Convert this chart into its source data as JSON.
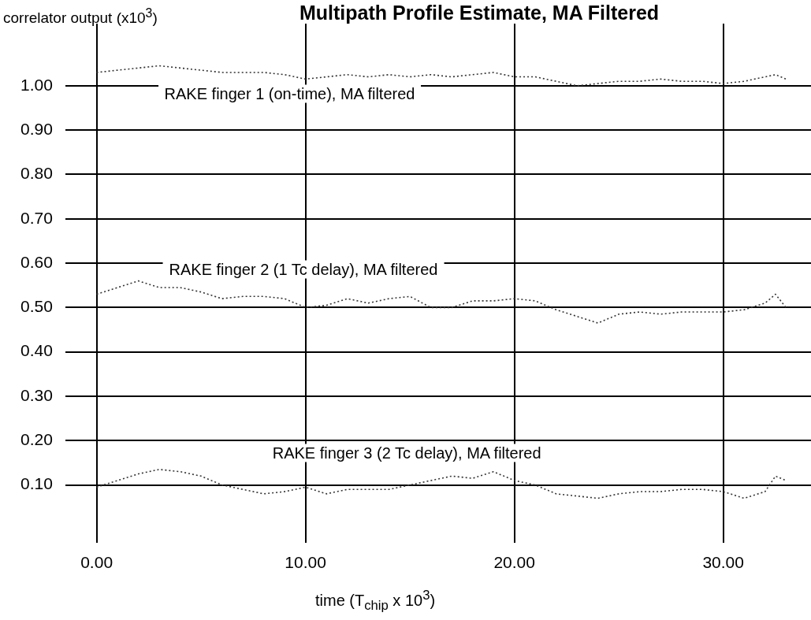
{
  "chart_data": {
    "type": "line",
    "title": "Multipath Profile Estimate, MA Filtered",
    "ylabel": "correlator output (x10$^{3}$)",
    "xlabel": "time (T$_{chip}$ x 10$^{3}$)",
    "xlim": [
      -1.5,
      34.2
    ],
    "ylim": [
      -0.03,
      1.14
    ],
    "xticks": [
      {
        "value": 0,
        "label": "0.00"
      },
      {
        "value": 10,
        "label": "10.00"
      },
      {
        "value": 20,
        "label": "20.00"
      },
      {
        "value": 30,
        "label": "30.00"
      }
    ],
    "yticks": [
      {
        "value": 0.1,
        "label": "0.10"
      },
      {
        "value": 0.2,
        "label": "0.20"
      },
      {
        "value": 0.3,
        "label": "0.30"
      },
      {
        "value": 0.4,
        "label": "0.40"
      },
      {
        "value": 0.5,
        "label": "0.50"
      },
      {
        "value": 0.6,
        "label": "0.60"
      },
      {
        "value": 0.7,
        "label": "0.70"
      },
      {
        "value": 0.8,
        "label": "0.80"
      },
      {
        "value": 0.9,
        "label": "0.90"
      },
      {
        "value": 1.0,
        "label": "1.00"
      }
    ],
    "grid": true,
    "legend": false,
    "marker": "none",
    "line_style": "dotted",
    "series": [
      {
        "name": "RAKE finger 1 (on-time), MA filtered",
        "color": "#333333",
        "x": [
          0,
          1,
          2,
          3,
          4,
          5,
          6,
          7,
          8,
          9,
          10,
          11,
          12,
          13,
          14,
          15,
          16,
          17,
          18,
          19,
          20,
          21,
          22,
          23,
          24,
          25,
          26,
          27,
          28,
          29,
          30,
          31,
          32,
          32.5,
          33
        ],
        "values": [
          1.03,
          1.035,
          1.04,
          1.045,
          1.04,
          1.035,
          1.03,
          1.03,
          1.03,
          1.025,
          1.015,
          1.02,
          1.025,
          1.02,
          1.025,
          1.02,
          1.025,
          1.02,
          1.025,
          1.03,
          1.02,
          1.02,
          1.01,
          1.0,
          1.005,
          1.01,
          1.01,
          1.015,
          1.01,
          1.01,
          1.005,
          1.01,
          1.02,
          1.025,
          1.015
        ]
      },
      {
        "name": "RAKE finger 2 (1 Tc delay), MA filtered",
        "color": "#333333",
        "x": [
          0,
          1,
          2,
          3,
          4,
          5,
          6,
          7,
          8,
          9,
          10,
          11,
          12,
          13,
          14,
          15,
          16,
          17,
          18,
          19,
          20,
          21,
          22,
          23,
          24,
          25,
          26,
          27,
          28,
          29,
          30,
          31,
          32,
          32.5,
          33
        ],
        "values": [
          0.53,
          0.545,
          0.56,
          0.545,
          0.545,
          0.535,
          0.52,
          0.525,
          0.525,
          0.52,
          0.5,
          0.505,
          0.52,
          0.51,
          0.52,
          0.525,
          0.5,
          0.5,
          0.515,
          0.515,
          0.52,
          0.515,
          0.495,
          0.48,
          0.465,
          0.485,
          0.49,
          0.485,
          0.49,
          0.49,
          0.49,
          0.495,
          0.51,
          0.53,
          0.5
        ]
      },
      {
        "name": "RAKE finger 3 (2 Tc delay), MA filtered",
        "color": "#333333",
        "x": [
          0,
          1,
          2,
          3,
          4,
          5,
          6,
          7,
          8,
          9,
          10,
          11,
          12,
          13,
          14,
          15,
          16,
          17,
          18,
          19,
          20,
          21,
          22,
          23,
          24,
          25,
          26,
          27,
          28,
          29,
          30,
          31,
          32,
          32.5,
          33
        ],
        "values": [
          0.095,
          0.11,
          0.125,
          0.135,
          0.13,
          0.12,
          0.1,
          0.09,
          0.08,
          0.085,
          0.095,
          0.08,
          0.09,
          0.09,
          0.09,
          0.1,
          0.11,
          0.12,
          0.115,
          0.13,
          0.11,
          0.1,
          0.08,
          0.075,
          0.07,
          0.08,
          0.085,
          0.085,
          0.09,
          0.09,
          0.085,
          0.07,
          0.085,
          0.12,
          0.11
        ]
      }
    ]
  }
}
